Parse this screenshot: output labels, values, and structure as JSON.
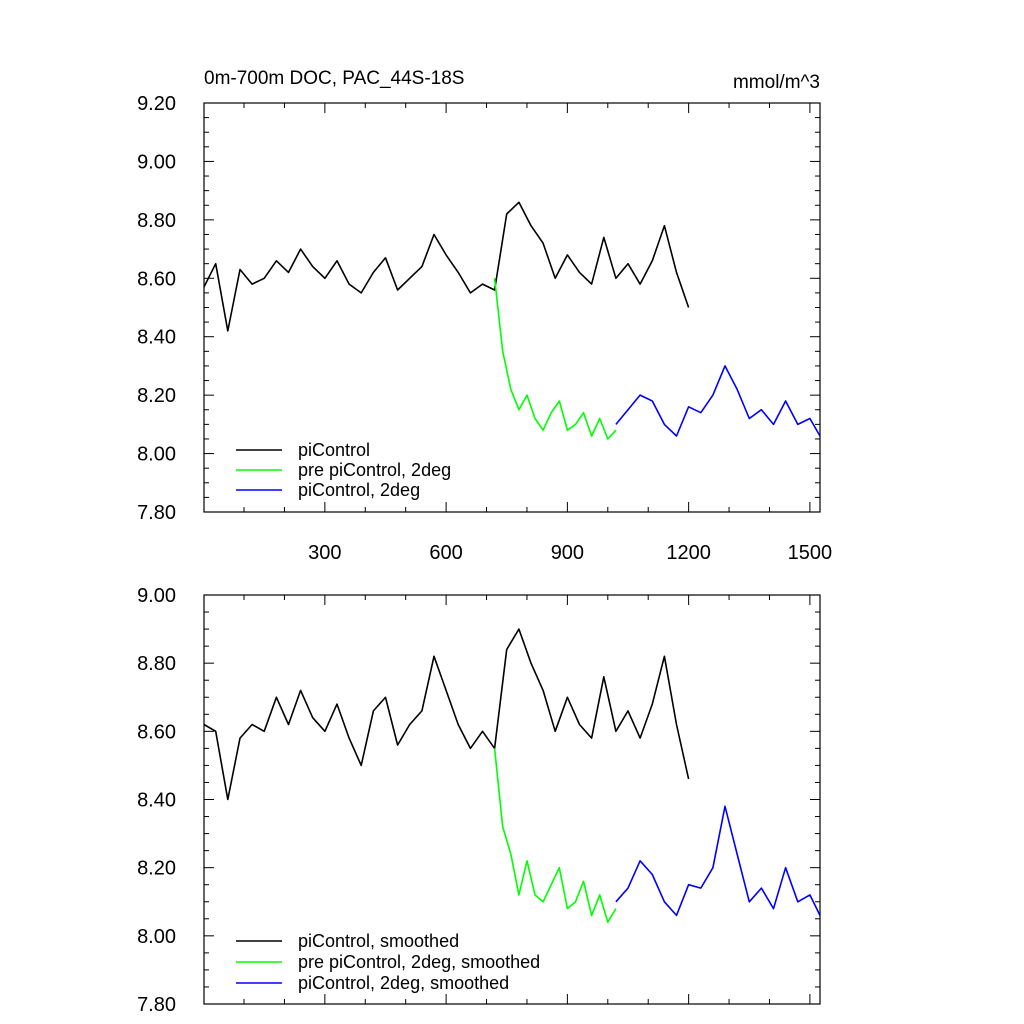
{
  "figure": {
    "title_left": "0m-700m DOC, PAC_44S-18S",
    "title_right": "mmol/m^3"
  },
  "chart_data": [
    {
      "type": "line",
      "title": "0m-700m DOC, PAC_44S-18S",
      "units": "mmol/m^3",
      "xlim": [
        1,
        1525
      ],
      "ylim": [
        7.8,
        9.2
      ],
      "x_ticks": [
        300,
        600,
        900,
        1200,
        1500
      ],
      "y_ticks": [
        7.8,
        8.0,
        8.2,
        8.4,
        8.6,
        8.8,
        9.0,
        9.2
      ],
      "y_tick_labels": [
        "7.80",
        "8.00",
        "8.20",
        "8.40",
        "8.60",
        "8.80",
        "9.00",
        "9.20"
      ],
      "legend_position": "bottom-left",
      "series": [
        {
          "name": "piControl",
          "color": "#000000",
          "x": [
            1,
            30,
            60,
            90,
            120,
            150,
            180,
            210,
            240,
            270,
            300,
            330,
            360,
            390,
            420,
            450,
            480,
            510,
            540,
            570,
            600,
            630,
            660,
            690,
            720,
            750,
            780,
            810,
            840,
            870,
            900,
            930,
            960,
            990,
            1020,
            1050,
            1080,
            1110,
            1140,
            1170,
            1200
          ],
          "y": [
            8.57,
            8.65,
            8.42,
            8.63,
            8.58,
            8.6,
            8.66,
            8.62,
            8.7,
            8.64,
            8.6,
            8.66,
            8.58,
            8.55,
            8.62,
            8.67,
            8.56,
            8.6,
            8.64,
            8.75,
            8.68,
            8.62,
            8.55,
            8.58,
            8.56,
            8.82,
            8.86,
            8.78,
            8.72,
            8.6,
            8.68,
            8.62,
            8.58,
            8.74,
            8.6,
            8.65,
            8.58,
            8.66,
            8.78,
            8.62,
            8.5
          ]
        },
        {
          "name": "pre piControl, 2deg",
          "color": "#00ff00",
          "x": [
            720,
            740,
            760,
            780,
            800,
            820,
            840,
            860,
            880,
            900,
            920,
            940,
            960,
            980,
            1000,
            1020
          ],
          "y": [
            8.6,
            8.35,
            8.22,
            8.15,
            8.2,
            8.12,
            8.08,
            8.14,
            8.18,
            8.08,
            8.1,
            8.14,
            8.06,
            8.12,
            8.05,
            8.08
          ]
        },
        {
          "name": "piControl, 2deg",
          "color": "#0000ff",
          "x": [
            1020,
            1050,
            1080,
            1110,
            1140,
            1170,
            1200,
            1230,
            1260,
            1290,
            1320,
            1350,
            1380,
            1410,
            1440,
            1470,
            1500,
            1525
          ],
          "y": [
            8.1,
            8.15,
            8.2,
            8.18,
            8.1,
            8.06,
            8.16,
            8.14,
            8.2,
            8.3,
            8.22,
            8.12,
            8.15,
            8.1,
            8.18,
            8.1,
            8.12,
            8.06
          ]
        }
      ]
    },
    {
      "type": "line",
      "xlim": [
        1,
        1525
      ],
      "ylim": [
        7.8,
        9.0
      ],
      "x_ticks": [
        300,
        600,
        900,
        1200,
        1500
      ],
      "y_ticks": [
        7.8,
        8.0,
        8.2,
        8.4,
        8.6,
        8.8,
        9.0
      ],
      "y_tick_labels": [
        "7.80",
        "8.00",
        "8.20",
        "8.40",
        "8.60",
        "8.80",
        "9.00"
      ],
      "legend_position": "bottom-left",
      "series": [
        {
          "name": "piControl, smoothed",
          "color": "#000000",
          "x": [
            1,
            30,
            60,
            90,
            120,
            150,
            180,
            210,
            240,
            270,
            300,
            330,
            360,
            390,
            420,
            450,
            480,
            510,
            540,
            570,
            600,
            630,
            660,
            690,
            720,
            750,
            780,
            810,
            840,
            870,
            900,
            930,
            960,
            990,
            1020,
            1050,
            1080,
            1110,
            1140,
            1170,
            1200
          ],
          "y": [
            8.62,
            8.6,
            8.4,
            8.58,
            8.62,
            8.6,
            8.7,
            8.62,
            8.72,
            8.64,
            8.6,
            8.68,
            8.58,
            8.5,
            8.66,
            8.7,
            8.56,
            8.62,
            8.66,
            8.82,
            8.72,
            8.62,
            8.55,
            8.6,
            8.55,
            8.84,
            8.9,
            8.8,
            8.72,
            8.6,
            8.7,
            8.62,
            8.58,
            8.76,
            8.6,
            8.66,
            8.58,
            8.68,
            8.82,
            8.62,
            8.46
          ]
        },
        {
          "name": "pre piControl, 2deg, smoothed",
          "color": "#00ff00",
          "x": [
            720,
            740,
            760,
            780,
            800,
            820,
            840,
            860,
            880,
            900,
            920,
            940,
            960,
            980,
            1000,
            1020
          ],
          "y": [
            8.55,
            8.32,
            8.24,
            8.12,
            8.22,
            8.12,
            8.1,
            8.15,
            8.2,
            8.08,
            8.1,
            8.16,
            8.06,
            8.12,
            8.04,
            8.08
          ]
        },
        {
          "name": "piControl, 2deg, smoothed",
          "color": "#0000ff",
          "x": [
            1020,
            1050,
            1080,
            1110,
            1140,
            1170,
            1200,
            1230,
            1260,
            1290,
            1320,
            1350,
            1380,
            1410,
            1440,
            1470,
            1500,
            1525
          ],
          "y": [
            8.1,
            8.14,
            8.22,
            8.18,
            8.1,
            8.06,
            8.15,
            8.14,
            8.2,
            8.38,
            8.24,
            8.1,
            8.14,
            8.08,
            8.2,
            8.1,
            8.12,
            8.06
          ]
        }
      ]
    }
  ]
}
